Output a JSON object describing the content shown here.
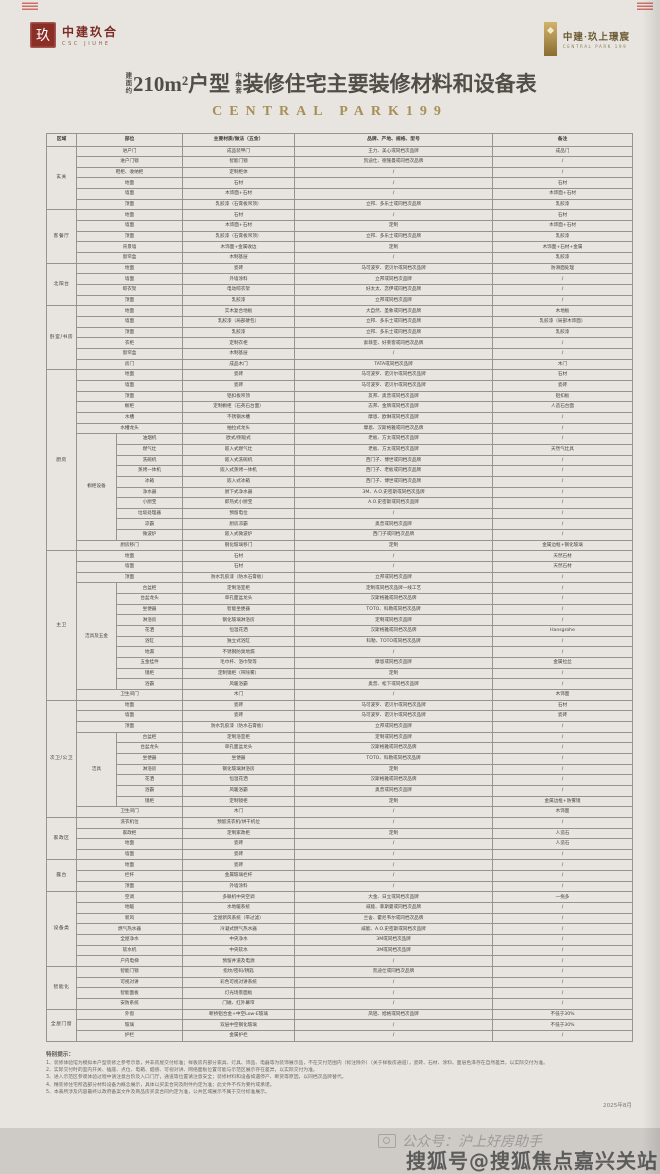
{
  "colors": {
    "accent_gold": "#a78f58",
    "logo_red": "#8b2e25",
    "paper": "#e8e5e0",
    "table_line": "#97938d"
  },
  "header": {
    "logo_left": {
      "seal_glyph": "玖",
      "name_cn": "中建玖合",
      "name_en": "CSC JIUHE"
    },
    "logo_right": {
      "name_cn": "中建·玖上璟宸",
      "name_en": "CENTRAL PARK 199"
    }
  },
  "title": {
    "prefix": "建面约",
    "main_1": "210m²户型",
    "tag": "中叠套",
    "main_2": "装修住宅主要装修材料和设备表",
    "subtitle": "CENTRAL PARK199"
  },
  "table": {
    "headers": [
      {
        "label": "区域",
        "span": 1
      },
      {
        "label": "部位",
        "span": 2
      },
      {
        "label": "主要材质/做法（五金）",
        "span": 1
      },
      {
        "label": "品牌、产地、规格、型号",
        "span": 1
      },
      {
        "label": "备注",
        "span": 1
      }
    ],
    "sections": [
      {
        "zone": "玄关",
        "rows": [
          {
            "c": [
              "进户门",
              "成品装甲门",
              "王力、美心或同档次品牌",
              "成品门"
            ]
          },
          {
            "c": [
              "进户门锁",
              "智能门锁",
              "凯迪仕、德施曼或同档次品牌",
              "/"
            ]
          },
          {
            "c": [
              "鞋柜、收纳柜",
              "定制柜体",
              "/",
              "/"
            ]
          },
          {
            "c": [
              "地面",
              "石材",
              "/",
              "石材"
            ]
          },
          {
            "c": [
              "墙面",
              "木饰面+石材",
              "/",
              "木饰面+石材"
            ]
          },
          {
            "c": [
              "顶面",
              "乳胶漆（石膏板吊顶）",
              "立邦、多乐士或同档次品牌",
              "乳胶漆"
            ]
          }
        ]
      },
      {
        "zone": "客餐厅",
        "rows": [
          {
            "c": [
              "地面",
              "石材",
              "/",
              "石材"
            ]
          },
          {
            "c": [
              "墙面",
              "木饰面+石材",
              "定制",
              "木饰面+石材"
            ]
          },
          {
            "c": [
              "顶面",
              "乳胶漆（石膏板吊顶）",
              "立邦、多乐士或同档次品牌",
              "乳胶漆"
            ]
          },
          {
            "c": [
              "背景墙",
              "木饰面+金属收边",
              "定制",
              "木饰面+石材+金属"
            ]
          },
          {
            "c": [
              "窗帘盒",
              "木制基层",
              "/",
              "乳胶漆"
            ]
          }
        ]
      },
      {
        "zone": "北阳台",
        "rows": [
          {
            "c": [
              "地面",
              "瓷砖",
              "马可波罗、诺贝尔或同档次品牌",
              "防滑面处理"
            ]
          },
          {
            "c": [
              "墙面",
              "外墙涂料",
              "立邦或同档次品牌",
              "/"
            ]
          },
          {
            "c": [
              "晾衣架",
              "电动晾衣架",
              "好太太、恋伊或同档次品牌",
              "/"
            ]
          },
          {
            "c": [
              "顶面",
              "乳胶漆",
              "立邦或同档次品牌",
              "/"
            ]
          }
        ]
      },
      {
        "zone": "卧室/书房",
        "rows": [
          {
            "c": [
              "地面",
              "实木复合地板",
              "大自然、圣象或同档次品牌",
              "木地板"
            ]
          },
          {
            "c": [
              "墙面",
              "乳胶漆（局部硬包）",
              "立邦、多乐士或同档次品牌",
              "乳胶漆（局部木饰面）"
            ]
          },
          {
            "c": [
              "顶面",
              "乳胶漆",
              "立邦、多乐士或同档次品牌",
              "乳胶漆"
            ]
          },
          {
            "c": [
              "衣柜",
              "定制衣柜",
              "索菲亚、好莱客或同档次品牌",
              "/"
            ]
          },
          {
            "c": [
              "窗帘盒",
              "木制基层",
              "/",
              "/"
            ]
          },
          {
            "c": [
              "房门",
              "成品木门",
              "TATA或同档次品牌",
              "木门"
            ]
          }
        ]
      },
      {
        "zone": "厨房",
        "rows": [
          {
            "c": [
              "地面",
              "瓷砖",
              "马可波罗、诺贝尔或同档次品牌",
              "石材"
            ]
          },
          {
            "c": [
              "墙面",
              "瓷砖",
              "马可波罗、诺贝尔或同档次品牌",
              "瓷砖"
            ]
          },
          {
            "c": [
              "顶面",
              "铝扣板吊顶",
              "友邦、奥普或同档次品牌",
              "铝扣板"
            ]
          },
          {
            "c": [
              "橱柜",
              "定制橱柜（石英石台面）",
              "志邦、金牌或同档次品牌",
              "人造石台面"
            ]
          },
          {
            "c": [
              "水槽",
              "不锈钢水槽",
              "摩恩、欧琳或同档次品牌",
              "/"
            ]
          },
          {
            "c": [
              "水槽龙头",
              "抽拉式龙头",
              "摩恩、汉斯格雅或同档次品牌",
              "/"
            ]
          },
          {
            "g": "橱柜设备",
            "gs": 10,
            "c": [
              "油烟机",
              "欧式/侧吸式",
              "老板、方太或同档次品牌",
              "/"
            ]
          },
          {
            "s": 1,
            "c": [
              "燃气灶",
              "嵌入式燃气灶",
              "老板、方太或同档次品牌",
              "天然气灶具"
            ]
          },
          {
            "s": 1,
            "c": [
              "洗碗机",
              "嵌入式洗碗机",
              "西门子、博世或同档次品牌",
              "/"
            ]
          },
          {
            "s": 1,
            "c": [
              "蒸烤一体机",
              "嵌入式蒸烤一体机",
              "西门子、老板或同档次品牌",
              "/"
            ]
          },
          {
            "s": 1,
            "c": [
              "冰箱",
              "嵌入式冰箱",
              "西门子、博世或同档次品牌",
              "/"
            ]
          },
          {
            "s": 1,
            "c": [
              "净水器",
              "厨下式净水器",
              "3M、A.O.史密斯或同档次品牌",
              "/"
            ]
          },
          {
            "s": 1,
            "c": [
              "小厨宝",
              "即热式小厨宝",
              "A.O.史密斯或同档次品牌",
              "/"
            ]
          },
          {
            "s": 1,
            "c": [
              "垃圾处理器",
              "预留电位",
              "/",
              "/"
            ]
          },
          {
            "s": 1,
            "c": [
              "凉霸",
              "厨房凉霸",
              "奥普或同档次品牌",
              "/"
            ]
          },
          {
            "s": 1,
            "c": [
              "微波炉",
              "嵌入式微波炉",
              "西门子或同档次品牌",
              "/"
            ]
          },
          {
            "c": [
              "厨房移门",
              "钢化玻璃移门",
              "定制",
              "金属边框+钢化玻璃"
            ]
          }
        ]
      },
      {
        "zone": "主卫",
        "rows": [
          {
            "c": [
              "地面",
              "石材",
              "/",
              "天然石材"
            ]
          },
          {
            "c": [
              "墙面",
              "石材",
              "/",
              "天然石材"
            ]
          },
          {
            "c": [
              "顶面",
              "防水乳胶漆（防水石膏板）",
              "立邦或同档次品牌",
              "/"
            ]
          },
          {
            "g": "洁具及五金",
            "gs": 10,
            "c": [
              "台盆柜",
              "定制浴室柜",
              "定制或同档次品牌一线工艺",
              "/"
            ]
          },
          {
            "s": 1,
            "c": [
              "台盆龙头",
              "单孔面盆龙头",
              "汉斯格雅或同档次品牌",
              "/"
            ]
          },
          {
            "s": 1,
            "c": [
              "坐便器",
              "智能坐便器",
              "TOTO、科勒或同档次品牌",
              "/"
            ]
          },
          {
            "s": 1,
            "c": [
              "淋浴房",
              "钢化玻璃淋浴房",
              "定制或同档次品牌",
              "/"
            ]
          },
          {
            "s": 1,
            "c": [
              "花洒",
              "恒温花洒",
              "汉斯格雅或同档次品牌",
              "Hansgrohe"
            ]
          },
          {
            "s": 1,
            "c": [
              "浴缸",
              "独立式浴缸",
              "科勒、TOTO或同档次品牌",
              "/"
            ]
          },
          {
            "s": 1,
            "c": [
              "地漏",
              "不锈钢防臭地漏",
              "/",
              "/"
            ]
          },
          {
            "s": 1,
            "c": [
              "五金挂件",
              "毛巾杆、浴巾架等",
              "摩恩或同档次品牌",
              "金属拉丝"
            ]
          },
          {
            "s": 1,
            "c": [
              "镜柜",
              "定制镜柜（带除雾）",
              "定制",
              "/"
            ]
          },
          {
            "s": 1,
            "c": [
              "浴霸",
              "风暖浴霸",
              "奥普、松下或同档次品牌",
              "/"
            ]
          },
          {
            "c": [
              "卫生间门",
              "木门",
              "/",
              "木饰面"
            ]
          }
        ]
      },
      {
        "zone": "次卫/公卫",
        "rows": [
          {
            "c": [
              "地面",
              "瓷砖",
              "马可波罗、诺贝尔或同档次品牌",
              "石材"
            ]
          },
          {
            "c": [
              "墙面",
              "瓷砖",
              "马可波罗、诺贝尔或同档次品牌",
              "瓷砖"
            ]
          },
          {
            "c": [
              "顶面",
              "防水乳胶漆（防水石膏板）",
              "立邦或同档次品牌",
              "/"
            ]
          },
          {
            "g": "洁具",
            "gs": 7,
            "c": [
              "台盆柜",
              "定制浴室柜",
              "定制或同档次品牌",
              "/"
            ]
          },
          {
            "s": 1,
            "c": [
              "台盆龙头",
              "单孔面盆龙头",
              "汉斯格雅或同档次品牌",
              "/"
            ]
          },
          {
            "s": 1,
            "c": [
              "坐便器",
              "坐便器",
              "TOTO、科勒或同档次品牌",
              "/"
            ]
          },
          {
            "s": 1,
            "c": [
              "淋浴房",
              "钢化玻璃淋浴房",
              "定制",
              "/"
            ]
          },
          {
            "s": 1,
            "c": [
              "花洒",
              "恒温花洒",
              "汉斯格雅或同档次品牌",
              "/"
            ]
          },
          {
            "s": 1,
            "c": [
              "浴霸",
              "风暖浴霸",
              "奥普或同档次品牌",
              "/"
            ]
          },
          {
            "s": 1,
            "c": [
              "镜柜",
              "定制镜柜",
              "定制",
              "金属边框+防雾镜"
            ]
          },
          {
            "c": [
              "卫生间门",
              "木门",
              "/",
              "木饰面"
            ]
          }
        ]
      },
      {
        "zone": "家政区",
        "rows": [
          {
            "c": [
              "洗衣机位",
              "预留洗衣机/烘干机位",
              "/",
              "/"
            ]
          },
          {
            "c": [
              "家政柜",
              "定制家政柜",
              "定制",
              "人造石"
            ]
          },
          {
            "c": [
              "地面",
              "瓷砖",
              "/",
              "人造石"
            ]
          },
          {
            "c": [
              "墙面",
              "瓷砖",
              "/",
              "/"
            ]
          }
        ]
      },
      {
        "zone": "露台",
        "rows": [
          {
            "c": [
              "地面",
              "瓷砖",
              "/",
              "/"
            ]
          },
          {
            "c": [
              "栏杆",
              "金属玻璃栏杆",
              "/",
              "/"
            ]
          },
          {
            "c": [
              "顶面",
              "外墙涂料",
              "/",
              "/"
            ]
          }
        ]
      },
      {
        "zone": "设备类",
        "rows": [
          {
            "c": [
              "空调",
              "多联机中央空调",
              "大金、日立或同档次品牌",
              "一拖多"
            ]
          },
          {
            "c": [
              "地暖",
              "水地暖系统",
              "威能、菲斯曼或同档次品牌",
              "/"
            ]
          },
          {
            "c": [
              "新风",
              "全屋新风系统（带过滤）",
              "兰舍、霍尼韦尔或同档次品牌",
              "/"
            ]
          },
          {
            "c": [
              "燃气热水器",
              "冷凝式燃气热水器",
              "威能、A.O.史密斯或同档次品牌",
              "/"
            ]
          },
          {
            "c": [
              "全屋净水",
              "中央净水",
              "3M或同档次品牌",
              "/"
            ]
          },
          {
            "c": [
              "软水机",
              "中央软水",
              "3M或同档次品牌",
              "/"
            ]
          },
          {
            "c": [
              "户内电梯",
              "预留井道及电源",
              "/",
              "/"
            ]
          }
        ]
      },
      {
        "zone": "智能化",
        "rows": [
          {
            "c": [
              "智能门锁",
              "指纹/密码/钥匙",
              "凯迪仕或同档次品牌",
              "/"
            ]
          },
          {
            "c": [
              "可视对讲",
              "彩色可视对讲系统",
              "/",
              "/"
            ]
          },
          {
            "c": [
              "智能面板",
              "灯光场景面板",
              "/",
              "/"
            ]
          },
          {
            "c": [
              "安防系统",
              "门磁、红外幕帘",
              "/",
              "/"
            ]
          }
        ]
      },
      {
        "zone": "全屋门窗",
        "rows": [
          {
            "c": [
              "外窗",
              "断桥铝合金+中空Low-E玻璃",
              "凤铝、旭格或同档次品牌",
              "不低于30%"
            ]
          },
          {
            "c": [
              "玻璃",
              "双层中空钢化玻璃",
              "/",
              "不低于30%"
            ]
          },
          {
            "c": [
              "护栏",
              "金属护栏",
              "/",
              "/"
            ]
          }
        ]
      }
    ]
  },
  "notes": {
    "title": "特别提示：",
    "items": [
      "1、装修体验馆为模拟本户型装修之参考示意，并非房屋交付标准；样板房内部分家具、灯具、饰品、电器等为装饰展示品，不在交付范围内（标注除外）（关于样板房通道），瓷砖、石材、涂料、面层色泽存在自然差异，以实际交付为准。",
      "2、实际交付时的室内开关、插座、点位、电箱、烟感、可视对讲、网络面板位置可能与示范区展示存在差异，以实际交付为准。",
      "3、进入示范区参观体验过程中请注意台阶及入口门厅，通道等位置请注意安全；装修材料和设备如遇停产、断货等原因，以同档次品牌替代。",
      "4、精装修住宅所选部分材料设备为概念展示，具体以买卖合同及附件约定为准；此文件不作为要约或承诺。",
      "5、本表所涉及内容最终以政府备案文件及商品房买卖合同约定为准，公共区域展示不属于交付标准展示。"
    ]
  },
  "footer": {
    "date": "2025年8月",
    "wechat_label": "公众号：沪上好房助手",
    "sohu_label": "搜狐号@搜狐焦点嘉兴关站"
  }
}
